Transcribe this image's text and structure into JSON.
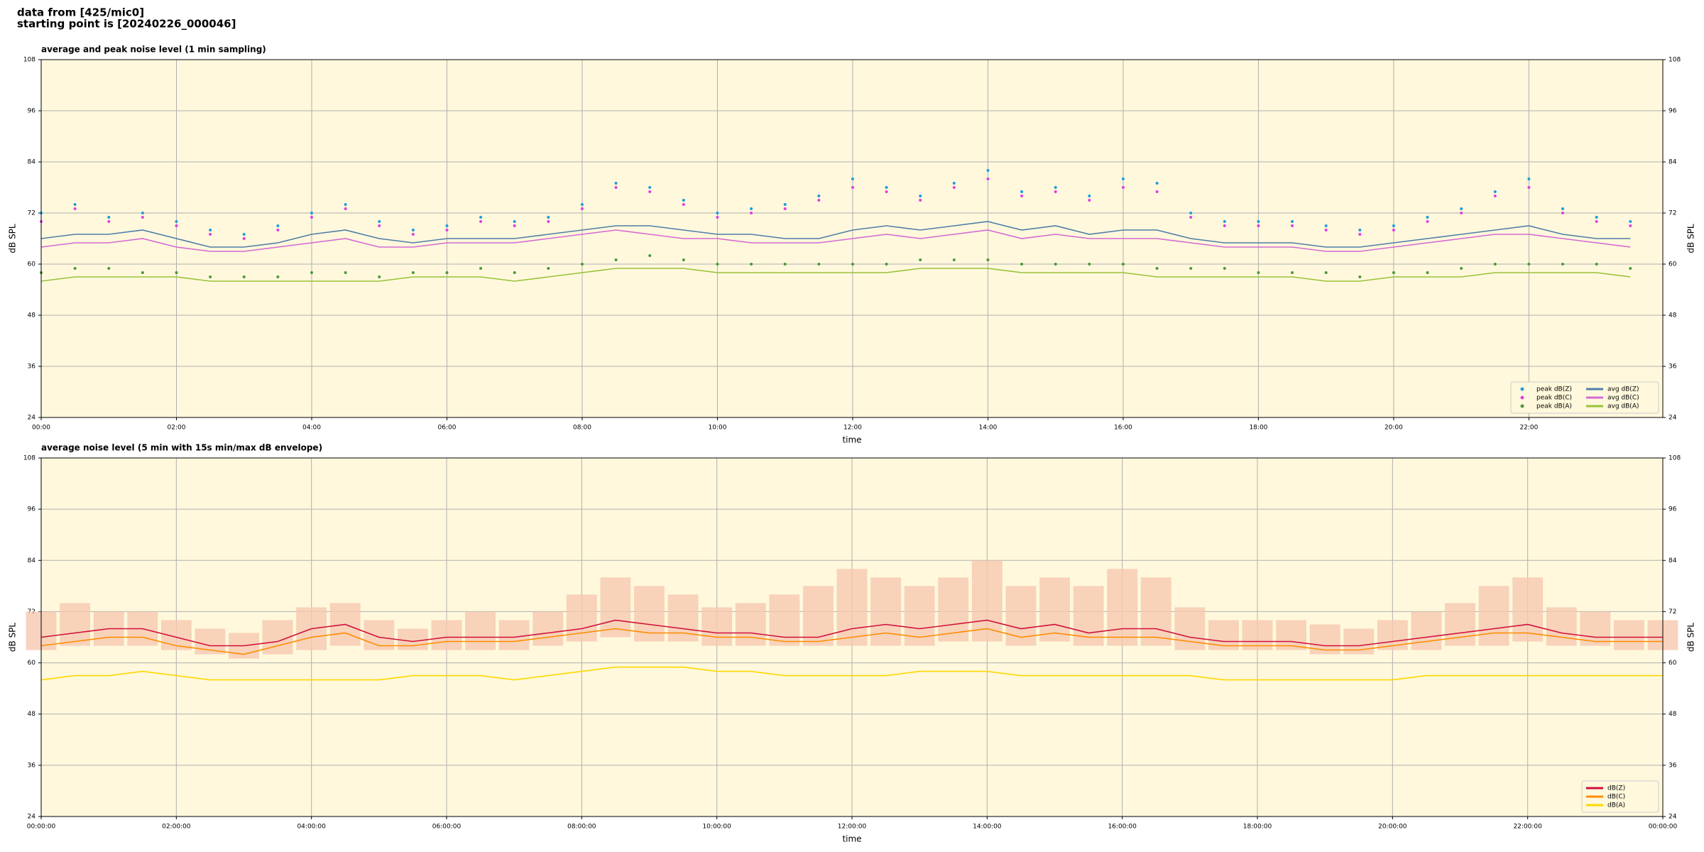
{
  "header": {
    "line1": "data from [425/mic0]",
    "line2": "starting point is [20240226_000046]"
  },
  "chart_data": [
    {
      "type": "line",
      "title": "average and peak noise level (1 min sampling)",
      "x_label": "time",
      "y_label": "dB SPL",
      "xlim": [
        0,
        23.98
      ],
      "ylim": [
        24,
        108
      ],
      "yticks": [
        24,
        36,
        48,
        60,
        72,
        84,
        96,
        108
      ],
      "xticks": [
        {
          "value": 0,
          "label": "00:00"
        },
        {
          "value": 2,
          "label": "02:00"
        },
        {
          "value": 4,
          "label": "04:00"
        },
        {
          "value": 6,
          "label": "06:00"
        },
        {
          "value": 8,
          "label": "08:00"
        },
        {
          "value": 10,
          "label": "10:00"
        },
        {
          "value": 12,
          "label": "12:00"
        },
        {
          "value": 14,
          "label": "14:00"
        },
        {
          "value": 16,
          "label": "16:00"
        },
        {
          "value": 18,
          "label": "18:00"
        },
        {
          "value": 20,
          "label": "20:00"
        },
        {
          "value": 22,
          "label": "22:00"
        }
      ],
      "grid": true,
      "legend_position": "lower right",
      "legend_columns": 2,
      "background": "#fff8dc",
      "x": [
        0,
        0.5,
        1,
        1.5,
        2,
        2.5,
        3,
        3.5,
        4,
        4.5,
        5,
        5.5,
        6,
        6.5,
        7,
        7.5,
        8,
        8.5,
        9,
        9.5,
        10,
        10.5,
        11,
        11.5,
        12,
        12.5,
        13,
        13.5,
        14,
        14.5,
        15,
        15.5,
        16,
        16.5,
        17,
        17.5,
        18,
        18.5,
        19,
        19.5,
        20,
        20.5,
        21,
        21.5,
        22,
        22.5,
        23,
        23.5
      ],
      "series": [
        {
          "name": "peak dB(Z)",
          "marker": "dot",
          "color": "#1f9de0",
          "values": [
            72,
            74,
            71,
            72,
            70,
            68,
            67,
            69,
            72,
            74,
            70,
            68,
            69,
            71,
            70,
            71,
            74,
            79,
            78,
            75,
            72,
            73,
            74,
            76,
            80,
            78,
            76,
            79,
            82,
            77,
            78,
            76,
            80,
            79,
            72,
            70,
            70,
            70,
            69,
            68,
            69,
            71,
            73,
            77,
            80,
            73,
            71,
            70
          ]
        },
        {
          "name": "peak dB(C)",
          "marker": "dot",
          "color": "#e040e0",
          "values": [
            70,
            73,
            70,
            71,
            69,
            67,
            66,
            68,
            71,
            73,
            69,
            67,
            68,
            70,
            69,
            70,
            73,
            78,
            77,
            74,
            71,
            72,
            73,
            75,
            78,
            77,
            75,
            78,
            80,
            76,
            77,
            75,
            78,
            77,
            71,
            69,
            69,
            69,
            68,
            67,
            68,
            70,
            72,
            76,
            78,
            72,
            70,
            69
          ]
        },
        {
          "name": "peak dB(A)",
          "marker": "dot",
          "color": "#4a9a3a",
          "values": [
            58,
            59,
            59,
            58,
            58,
            57,
            57,
            57,
            58,
            58,
            57,
            58,
            58,
            59,
            58,
            59,
            60,
            61,
            62,
            61,
            60,
            60,
            60,
            60,
            60,
            60,
            61,
            61,
            61,
            60,
            60,
            60,
            60,
            59,
            59,
            59,
            58,
            58,
            58,
            57,
            58,
            58,
            59,
            60,
            60,
            60,
            60,
            59
          ]
        },
        {
          "name": "avg dB(Z)",
          "marker": "line",
          "color": "#4f7ea8",
          "values": [
            66,
            67,
            67,
            68,
            66,
            64,
            64,
            65,
            67,
            68,
            66,
            65,
            66,
            66,
            66,
            67,
            68,
            69,
            69,
            68,
            67,
            67,
            66,
            66,
            68,
            69,
            68,
            69,
            70,
            68,
            69,
            67,
            68,
            68,
            66,
            65,
            65,
            65,
            64,
            64,
            65,
            66,
            67,
            68,
            69,
            67,
            66,
            66
          ]
        },
        {
          "name": "avg dB(C)",
          "marker": "line",
          "color": "#d46ad4",
          "values": [
            64,
            65,
            65,
            66,
            64,
            63,
            63,
            64,
            65,
            66,
            64,
            64,
            65,
            65,
            65,
            66,
            67,
            68,
            67,
            66,
            66,
            65,
            65,
            65,
            66,
            67,
            66,
            67,
            68,
            66,
            67,
            66,
            66,
            66,
            65,
            64,
            64,
            64,
            63,
            63,
            64,
            65,
            66,
            67,
            67,
            66,
            65,
            64
          ]
        },
        {
          "name": "avg dB(A)",
          "marker": "line",
          "color": "#9ac23a",
          "values": [
            56,
            57,
            57,
            57,
            57,
            56,
            56,
            56,
            56,
            56,
            56,
            57,
            57,
            57,
            56,
            57,
            58,
            59,
            59,
            59,
            58,
            58,
            58,
            58,
            58,
            58,
            59,
            59,
            59,
            58,
            58,
            58,
            58,
            57,
            57,
            57,
            57,
            57,
            56,
            56,
            57,
            57,
            57,
            58,
            58,
            58,
            58,
            57
          ]
        }
      ]
    },
    {
      "type": "line",
      "title": "average noise level (5 min with 15s min/max dB envelope)",
      "x_label": "time",
      "y_label": "dB SPL",
      "xlim": [
        0,
        24
      ],
      "ylim": [
        24,
        108
      ],
      "yticks": [
        24,
        36,
        48,
        60,
        72,
        84,
        96,
        108
      ],
      "xticks": [
        {
          "value": 0,
          "label": "00:00:00"
        },
        {
          "value": 2,
          "label": "02:00:00"
        },
        {
          "value": 4,
          "label": "04:00:00"
        },
        {
          "value": 6,
          "label": "06:00:00"
        },
        {
          "value": 8,
          "label": "08:00:00"
        },
        {
          "value": 10,
          "label": "10:00:00"
        },
        {
          "value": 12,
          "label": "12:00:00"
        },
        {
          "value": 14,
          "label": "14:00:00"
        },
        {
          "value": 16,
          "label": "16:00:00"
        },
        {
          "value": 18,
          "label": "18:00:00"
        },
        {
          "value": 20,
          "label": "20:00:00"
        },
        {
          "value": 22,
          "label": "22:00:00"
        },
        {
          "value": 24,
          "label": "00:00:00"
        }
      ],
      "grid": true,
      "legend_position": "lower right",
      "legend_columns": 1,
      "background": "#fff8dc",
      "x": [
        0,
        0.5,
        1,
        1.5,
        2,
        2.5,
        3,
        3.5,
        4,
        4.5,
        5,
        5.5,
        6,
        6.5,
        7,
        7.5,
        8,
        8.5,
        9,
        9.5,
        10,
        10.5,
        11,
        11.5,
        12,
        12.5,
        13,
        13.5,
        14,
        14.5,
        15,
        15.5,
        16,
        16.5,
        17,
        17.5,
        18,
        18.5,
        19,
        19.5,
        20,
        20.5,
        21,
        21.5,
        22,
        22.5,
        23,
        23.5,
        24
      ],
      "envelope_color": "#f6c8b0",
      "envelope_low": [
        63,
        64,
        64,
        64,
        63,
        62,
        61,
        62,
        63,
        64,
        63,
        63,
        63,
        63,
        63,
        64,
        65,
        66,
        65,
        65,
        64,
        64,
        64,
        64,
        64,
        64,
        64,
        65,
        65,
        64,
        65,
        64,
        64,
        64,
        63,
        63,
        63,
        63,
        62,
        62,
        63,
        63,
        64,
        64,
        65,
        64,
        64,
        63,
        63
      ],
      "envelope_high": [
        72,
        74,
        72,
        72,
        70,
        68,
        67,
        70,
        73,
        74,
        70,
        68,
        70,
        72,
        70,
        72,
        76,
        80,
        78,
        76,
        73,
        74,
        76,
        78,
        82,
        80,
        78,
        80,
        84,
        78,
        80,
        78,
        82,
        80,
        73,
        70,
        70,
        70,
        69,
        68,
        70,
        72,
        74,
        78,
        80,
        73,
        72,
        70,
        70
      ],
      "series": [
        {
          "name": "dB(Z)",
          "marker": "line",
          "color": "#d0103a",
          "values": [
            66,
            67,
            68,
            68,
            66,
            64,
            64,
            65,
            68,
            69,
            66,
            65,
            66,
            66,
            66,
            67,
            68,
            70,
            69,
            68,
            67,
            67,
            66,
            66,
            68,
            69,
            68,
            69,
            70,
            68,
            69,
            67,
            68,
            68,
            66,
            65,
            65,
            65,
            64,
            64,
            65,
            66,
            67,
            68,
            69,
            67,
            66,
            66,
            66
          ]
        },
        {
          "name": "dB(C)",
          "marker": "line",
          "color": "#ff8c00",
          "values": [
            64,
            65,
            66,
            66,
            64,
            63,
            62,
            64,
            66,
            67,
            64,
            64,
            65,
            65,
            65,
            66,
            67,
            68,
            67,
            67,
            66,
            66,
            65,
            65,
            66,
            67,
            66,
            67,
            68,
            66,
            67,
            66,
            66,
            66,
            65,
            64,
            64,
            64,
            63,
            63,
            64,
            65,
            66,
            67,
            67,
            66,
            65,
            65,
            65
          ]
        },
        {
          "name": "dB(A)",
          "marker": "line",
          "color": "#ffd700",
          "values": [
            56,
            57,
            57,
            58,
            57,
            56,
            56,
            56,
            56,
            56,
            56,
            57,
            57,
            57,
            56,
            57,
            58,
            59,
            59,
            59,
            58,
            58,
            57,
            57,
            57,
            57,
            58,
            58,
            58,
            57,
            57,
            57,
            57,
            57,
            57,
            56,
            56,
            56,
            56,
            56,
            56,
            57,
            57,
            57,
            57,
            57,
            57,
            57,
            57
          ]
        }
      ]
    }
  ]
}
